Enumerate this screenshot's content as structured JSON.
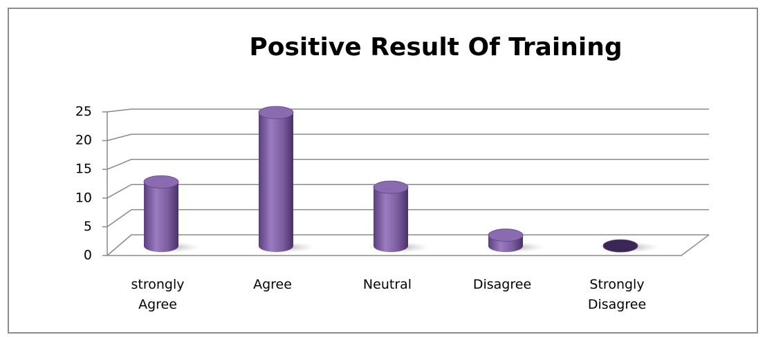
{
  "chart_data": {
    "type": "bar",
    "title": "Positive Result Of Training",
    "categories": [
      "strongly Agree",
      "Agree",
      "Neutral",
      "Disagree",
      "Strongly Disagree"
    ],
    "values": [
      12,
      25,
      11,
      2,
      0
    ],
    "color": "#7b5c9f",
    "ylim": [
      0,
      25
    ],
    "yticks": [
      0,
      5,
      10,
      15,
      20,
      25
    ],
    "grid": true
  }
}
